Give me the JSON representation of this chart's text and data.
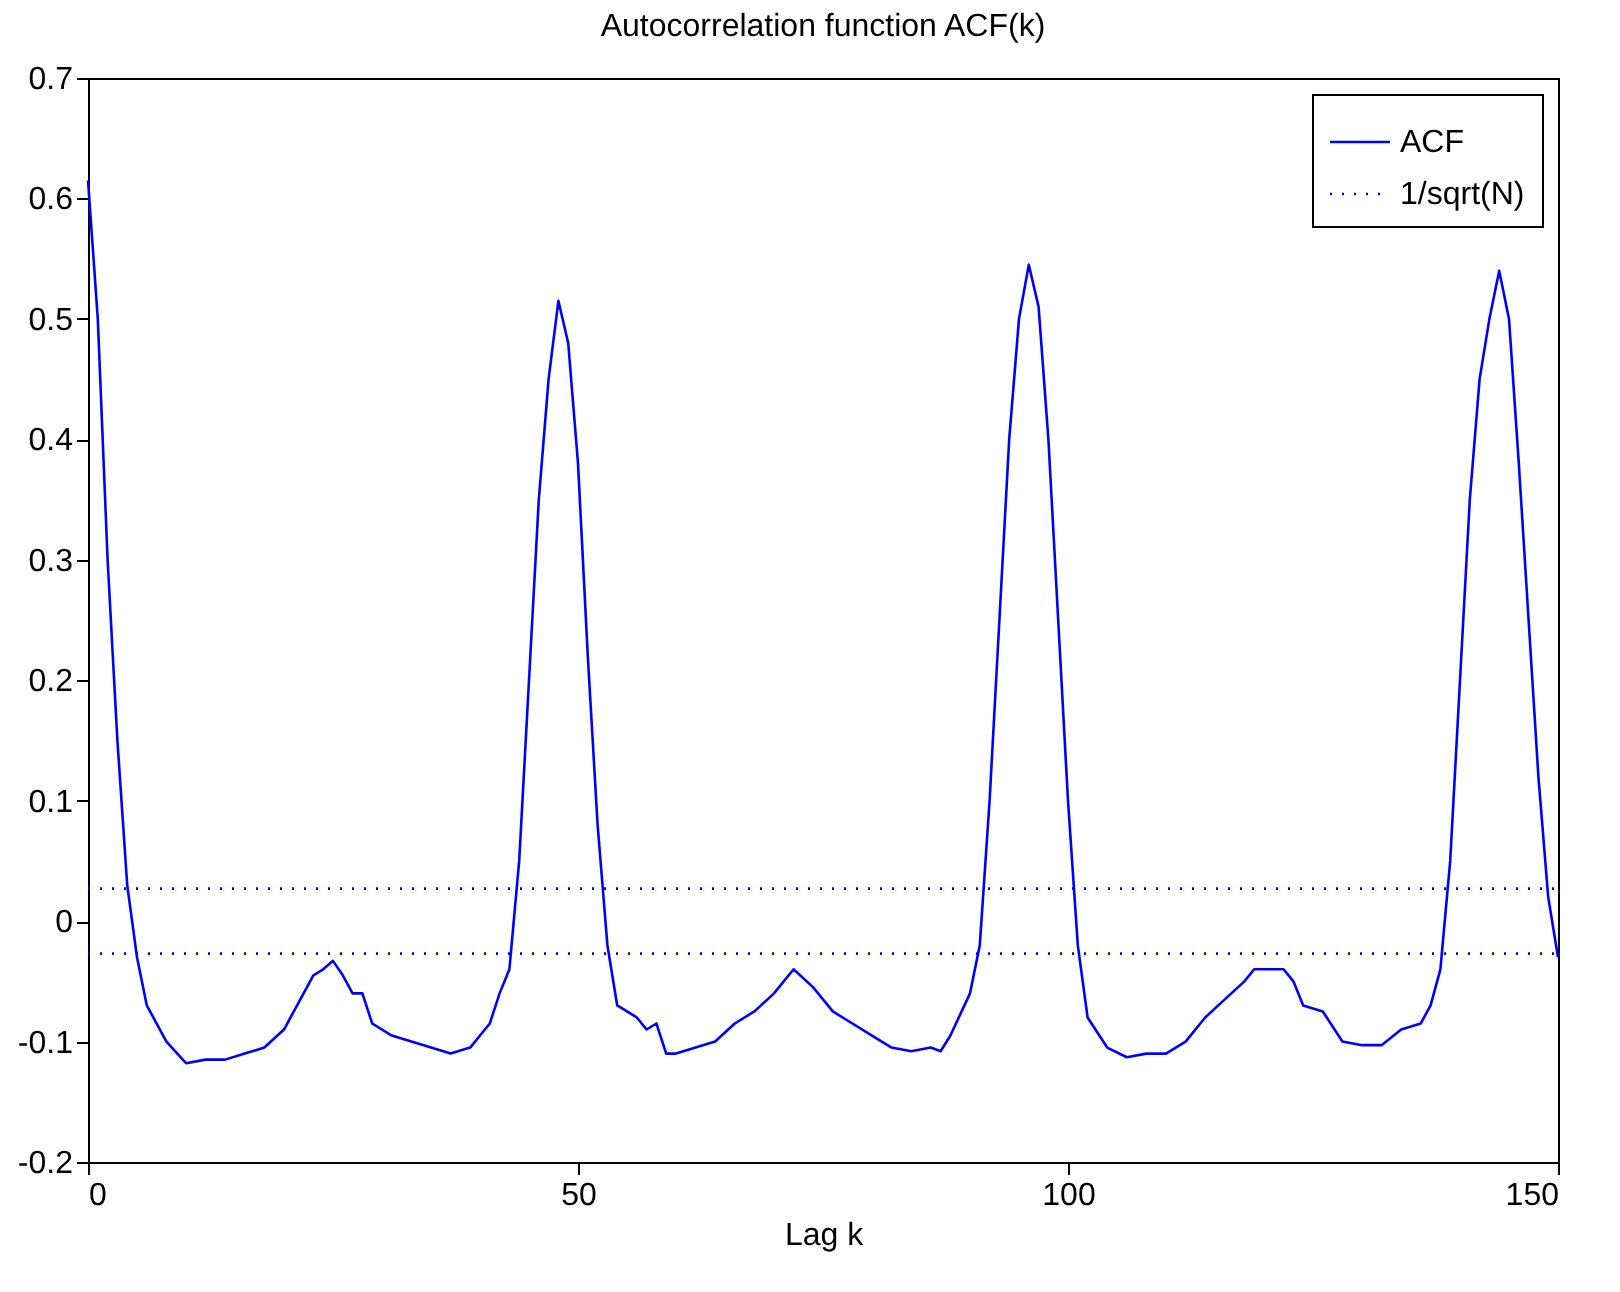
{
  "chart_data": {
    "type": "line",
    "title": "Autocorrelation function ACF(k)",
    "xlabel": "Lag k",
    "xlim": [
      0,
      150
    ],
    "xticks": [
      0,
      50,
      100,
      150
    ],
    "ylim": [
      -0.2,
      0.7
    ],
    "yticks": [
      -0.2,
      -0.1,
      0,
      0.1,
      0.2,
      0.3,
      0.4,
      0.5,
      0.6,
      0.7
    ],
    "grid": false,
    "legend": "top right",
    "marker": "none",
    "series": [
      {
        "name": "ACF",
        "color": "#0000ff",
        "line_style": "solid",
        "x": [
          0,
          1,
          2,
          3,
          4,
          5,
          6,
          8,
          10,
          12,
          14,
          16,
          18,
          20,
          22,
          23,
          24,
          25,
          26,
          27,
          28,
          29,
          31,
          33,
          35,
          37,
          39,
          41,
          42,
          43,
          44,
          45,
          46,
          47,
          48,
          49,
          50,
          51,
          52,
          53,
          54,
          55,
          56,
          57,
          58,
          59,
          60,
          62,
          64,
          66,
          68,
          70,
          72,
          74,
          76,
          78,
          80,
          82,
          84,
          86,
          87,
          88,
          90,
          91,
          92,
          93,
          94,
          95,
          96,
          97,
          98,
          99,
          100,
          101,
          102,
          104,
          106,
          108,
          110,
          112,
          114,
          116,
          118,
          119,
          121,
          122,
          123,
          124,
          126,
          128,
          130,
          132,
          134,
          136,
          137,
          138,
          139,
          140,
          141,
          142,
          143,
          144,
          145,
          146,
          147,
          148,
          149,
          150
        ],
        "values": [
          0.615,
          0.5,
          0.3,
          0.15,
          0.03,
          -0.03,
          -0.07,
          -0.1,
          -0.118,
          -0.115,
          -0.115,
          -0.11,
          -0.105,
          -0.09,
          -0.06,
          -0.045,
          -0.04,
          -0.033,
          -0.045,
          -0.06,
          -0.06,
          -0.085,
          -0.095,
          -0.1,
          -0.105,
          -0.11,
          -0.105,
          -0.085,
          -0.06,
          -0.04,
          0.05,
          0.2,
          0.35,
          0.45,
          0.515,
          0.48,
          0.38,
          0.22,
          0.08,
          -0.02,
          -0.07,
          -0.075,
          -0.08,
          -0.09,
          -0.085,
          -0.11,
          -0.11,
          -0.105,
          -0.1,
          -0.085,
          -0.075,
          -0.06,
          -0.04,
          -0.055,
          -0.075,
          -0.085,
          -0.095,
          -0.105,
          -0.108,
          -0.105,
          -0.108,
          -0.095,
          -0.06,
          -0.02,
          0.1,
          0.25,
          0.4,
          0.5,
          0.545,
          0.51,
          0.4,
          0.25,
          0.1,
          -0.02,
          -0.08,
          -0.105,
          -0.113,
          -0.11,
          -0.11,
          -0.1,
          -0.08,
          -0.065,
          -0.05,
          -0.04,
          -0.04,
          -0.04,
          -0.05,
          -0.07,
          -0.075,
          -0.1,
          -0.103,
          -0.103,
          -0.09,
          -0.085,
          -0.07,
          -0.04,
          0.05,
          0.2,
          0.35,
          0.45,
          0.5,
          0.54,
          0.5,
          0.38,
          0.25,
          0.12,
          0.02,
          -0.03
        ]
      },
      {
        "name": "1/sqrt(N)",
        "color": "#0000ff",
        "line_style": "dotted",
        "x": [
          0,
          150
        ],
        "values": [
          0.027,
          0.027
        ]
      },
      {
        "color": "#0000ff",
        "line_style": "dotted",
        "x": [
          0,
          150
        ],
        "values": [
          -0.027,
          -0.027
        ]
      }
    ]
  }
}
